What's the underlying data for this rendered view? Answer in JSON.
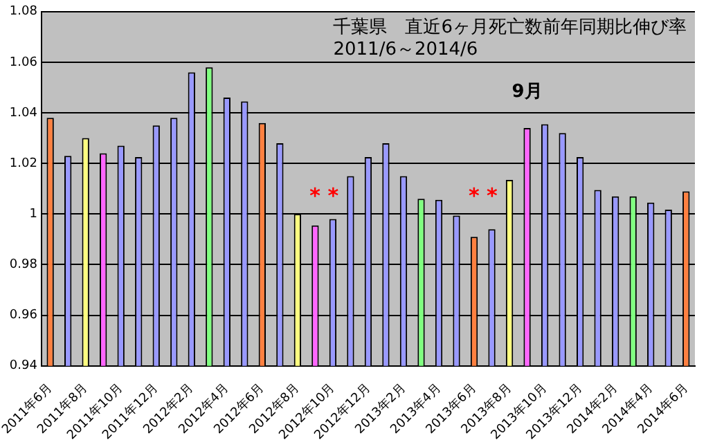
{
  "chart_data": {
    "type": "bar",
    "title": "千葉県　直近6ヶ月死亡数前年同期比伸び率",
    "subtitle": "2011/6～2014/6",
    "categories": [
      "2011年6月",
      null,
      "2011年8月",
      null,
      "2011年10月",
      null,
      "2011年12月",
      null,
      "2012年2月",
      null,
      "2012年4月",
      null,
      "2012年6月",
      null,
      "2012年8月",
      null,
      "2012年10月",
      null,
      "2012年12月",
      null,
      "2013年2月",
      null,
      "2013年4月",
      null,
      "2013年6月",
      null,
      "2013年8月",
      null,
      "2013年10月",
      null,
      "2013年12月",
      null,
      "2014年2月",
      null,
      "2014年4月",
      null,
      "2014年6月"
    ],
    "values": [
      1.038,
      1.023,
      1.03,
      1.024,
      1.027,
      1.0225,
      1.035,
      1.038,
      1.056,
      1.058,
      1.046,
      1.0445,
      1.036,
      1.028,
      1.0,
      0.9955,
      0.998,
      1.015,
      1.0225,
      1.028,
      1.015,
      1.006,
      1.0056,
      0.9994,
      0.991,
      0.994,
      1.0135,
      1.034,
      1.0355,
      1.032,
      1.0225,
      1.0095,
      1.007,
      1.007,
      1.0045,
      1.0017,
      1.009
    ],
    "colors": [
      "#ff8040",
      "#9999ff",
      "#ffff80",
      "#ff66ff",
      "#9999ff",
      "#9999ff",
      "#9999ff",
      "#9999ff",
      "#9999ff",
      "#80ff80",
      "#9999ff",
      "#9999ff",
      "#ff8040",
      "#9999ff",
      "#ffff80",
      "#ff66ff",
      "#9999ff",
      "#9999ff",
      "#9999ff",
      "#9999ff",
      "#9999ff",
      "#80ff80",
      "#9999ff",
      "#9999ff",
      "#ff8040",
      "#9999ff",
      "#ffff80",
      "#ff66ff",
      "#9999ff",
      "#9999ff",
      "#9999ff",
      "#9999ff",
      "#9999ff",
      "#80ff80",
      "#9999ff",
      "#9999ff",
      "#ff8040"
    ],
    "ylim": [
      0.94,
      1.08
    ],
    "yticks": [
      0.94,
      0.96,
      0.98,
      1,
      1.02,
      1.04,
      1.06,
      1.08
    ],
    "grid": "y",
    "legend": false,
    "annotations": [
      "* *",
      "* *",
      "9月"
    ]
  }
}
